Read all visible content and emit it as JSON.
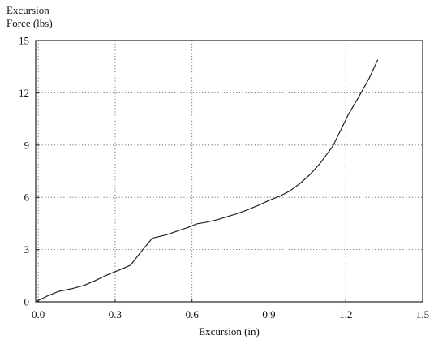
{
  "chart_data": {
    "type": "line",
    "title": "",
    "xlabel": "Excursion (in)",
    "ylabel_lines": [
      "Excursion",
      "Force (lbs)"
    ],
    "xlim": [
      -0.01,
      1.5
    ],
    "ylim": [
      0,
      15
    ],
    "xticks": [
      0.0,
      0.3,
      0.6,
      0.9,
      1.2,
      1.5
    ],
    "xtick_labels": [
      "0.0",
      "0.3",
      "0.6",
      "0.9",
      "1.2",
      "1.5"
    ],
    "yticks": [
      0,
      3,
      6,
      9,
      12,
      15
    ],
    "ytick_labels": [
      "0",
      "3",
      "6",
      "9",
      "12",
      "15"
    ],
    "grid": true,
    "grid_style": "dotted",
    "line_color": "#222222",
    "series": [
      {
        "x": [
          -0.01,
          0.03,
          0.08,
          0.13,
          0.18,
          0.22,
          0.27,
          0.32,
          0.36,
          0.4,
          0.445,
          0.5,
          0.54,
          0.58,
          0.62,
          0.66,
          0.7,
          0.74,
          0.78,
          0.82,
          0.86,
          0.9,
          0.94,
          0.98,
          1.02,
          1.06,
          1.1,
          1.15,
          1.18,
          1.21,
          1.25,
          1.29,
          1.325
        ],
        "y": [
          0.0,
          0.3,
          0.6,
          0.75,
          0.95,
          1.2,
          1.55,
          1.85,
          2.1,
          2.85,
          3.65,
          3.85,
          4.05,
          4.25,
          4.48,
          4.58,
          4.72,
          4.9,
          5.08,
          5.3,
          5.55,
          5.82,
          6.05,
          6.35,
          6.78,
          7.3,
          7.95,
          8.95,
          9.85,
          10.75,
          11.75,
          12.8,
          13.9
        ]
      }
    ]
  }
}
